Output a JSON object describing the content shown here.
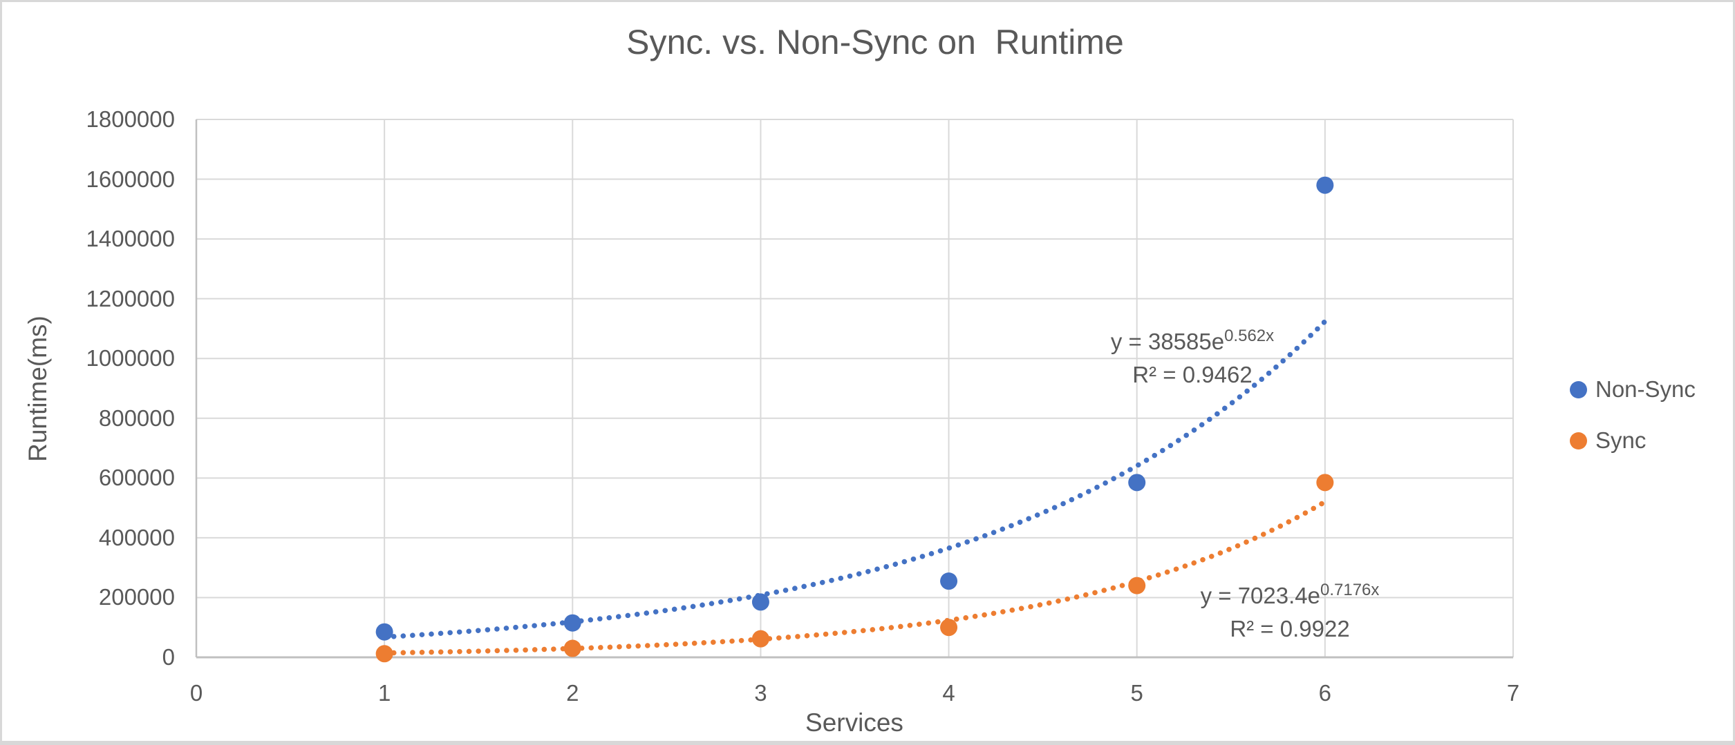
{
  "chart_data": {
    "type": "scatter",
    "title": "Sync. vs. Non-Sync on  Runtime",
    "xlabel": "Services",
    "ylabel": "Runtime(ms)",
    "xlim": [
      0,
      7
    ],
    "ylim": [
      0,
      1800000
    ],
    "x_ticks": [
      0,
      1,
      2,
      3,
      4,
      5,
      6,
      7
    ],
    "y_ticks": [
      0,
      200000,
      400000,
      600000,
      800000,
      1000000,
      1200000,
      1400000,
      1600000,
      1800000
    ],
    "grid": true,
    "legend_position": "right",
    "x": [
      1,
      2,
      3,
      4,
      5,
      6
    ],
    "series": [
      {
        "name": "Non-Sync",
        "color": "#4472C4",
        "values": [
          85000,
          115000,
          185000,
          255000,
          585000,
          1580000
        ],
        "trendline": {
          "type": "exponential",
          "style": "dotted",
          "a": 38585,
          "b": 0.562,
          "range": [
            1,
            6
          ],
          "equation_base": "y = 38585e",
          "equation_exponent": "0.562x",
          "r2_label": "R² = 0.9462"
        }
      },
      {
        "name": "Sync",
        "color": "#ED7D31",
        "values": [
          12000,
          30000,
          62000,
          100000,
          240000,
          585000
        ],
        "trendline": {
          "type": "exponential",
          "style": "dotted",
          "a": 7023.4,
          "b": 0.7176,
          "range": [
            1,
            6
          ],
          "equation_base": "y = 7023.4e",
          "equation_exponent": "0.7176x",
          "r2_label": "R² = 0.9922"
        }
      }
    ]
  },
  "colors": {
    "text": "#595959",
    "grid": "#D9D9D9",
    "axis": "#C0C0C0",
    "background": "#FFFFFF",
    "frame": "#D8D8D8"
  }
}
